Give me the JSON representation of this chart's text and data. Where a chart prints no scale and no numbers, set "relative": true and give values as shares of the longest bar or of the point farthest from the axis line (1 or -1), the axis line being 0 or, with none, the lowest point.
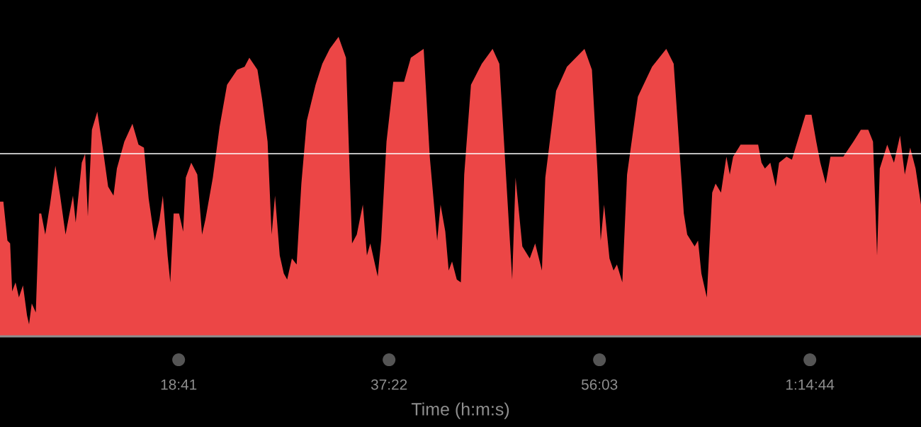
{
  "chart_data": {
    "type": "area",
    "relative": true,
    "xlabel": "Time (h:m:s)",
    "xlim": [
      2.82,
      84.6
    ],
    "xticks": [
      {
        "value": 18.6833,
        "label": "18:41"
      },
      {
        "value": 37.3667,
        "label": "37:22"
      },
      {
        "value": 56.05,
        "label": "56:03"
      },
      {
        "value": 74.7333,
        "label": "1:14:44"
      }
    ],
    "ref_lines": [
      {
        "axis": "y",
        "value": 0.61,
        "color": "#ffffff"
      }
    ],
    "grid": false,
    "legend": false,
    "series": [
      {
        "color": "#ec4646",
        "x": [
          2.82,
          3.12,
          3.48,
          3.72,
          3.9,
          4.2,
          4.5,
          4.86,
          5.22,
          5.4,
          5.64,
          6.0,
          6.3,
          6.48,
          6.84,
          7.26,
          7.74,
          8.16,
          8.64,
          8.94,
          9.3,
          9.54,
          10.08,
          10.38,
          10.62,
          10.98,
          11.46,
          11.94,
          12.42,
          12.9,
          13.2,
          13.86,
          14.58,
          15.12,
          15.6,
          16.02,
          16.56,
          16.98,
          17.28,
          17.7,
          17.94,
          18.24,
          18.72,
          19.08,
          19.32,
          19.8,
          20.34,
          20.76,
          21.06,
          21.72,
          22.32,
          22.98,
          23.88,
          24.54,
          24.96,
          25.68,
          26.1,
          26.58,
          26.94,
          27.24,
          27.66,
          28.02,
          28.32,
          28.74,
          29.16,
          29.58,
          30.06,
          30.84,
          31.44,
          32.1,
          32.88,
          33.54,
          33.78,
          34.08,
          34.5,
          35.04,
          35.4,
          35.7,
          36.36,
          36.66,
          37.14,
          37.74,
          38.7,
          39.3,
          40.44,
          40.98,
          41.64,
          41.94,
          42.36,
          42.66,
          42.96,
          43.38,
          43.74,
          44.04,
          44.64,
          45.6,
          46.56,
          47.16,
          48.3,
          48.6,
          49.2,
          49.86,
          50.34,
          50.94,
          51.24,
          52.2,
          53.16,
          54.72,
          55.38,
          55.86,
          56.16,
          56.46,
          56.94,
          57.3,
          57.6,
          58.08,
          58.5,
          59.46,
          60.72,
          61.98,
          62.64,
          63.54,
          63.84,
          64.5,
          64.8,
          65.1,
          65.58,
          66.06,
          66.36,
          66.84,
          67.32,
          67.62,
          67.92,
          68.58,
          70.14,
          70.44,
          70.74,
          71.22,
          71.7,
          72.0,
          72.66,
          73.14,
          73.62,
          74.34,
          74.88,
          75.3,
          75.66,
          76.14,
          76.56,
          77.7,
          78.6,
          79.26,
          79.92,
          80.34,
          80.7,
          80.94,
          81.6,
          82.2,
          82.74,
          83.16,
          83.64,
          84.12,
          84.6
        ],
        "values": [
          0.45,
          0.45,
          0.32,
          0.31,
          0.15,
          0.18,
          0.13,
          0.17,
          0.07,
          0.04,
          0.11,
          0.08,
          0.41,
          0.41,
          0.34,
          0.44,
          0.57,
          0.47,
          0.34,
          0.4,
          0.47,
          0.38,
          0.58,
          0.61,
          0.4,
          0.69,
          0.75,
          0.63,
          0.5,
          0.47,
          0.56,
          0.65,
          0.71,
          0.64,
          0.63,
          0.46,
          0.32,
          0.39,
          0.47,
          0.27,
          0.18,
          0.41,
          0.41,
          0.35,
          0.53,
          0.58,
          0.54,
          0.34,
          0.39,
          0.53,
          0.7,
          0.84,
          0.89,
          0.9,
          0.93,
          0.89,
          0.79,
          0.65,
          0.34,
          0.47,
          0.27,
          0.21,
          0.19,
          0.26,
          0.24,
          0.51,
          0.72,
          0.84,
          0.91,
          0.96,
          1,
          0.93,
          0.65,
          0.31,
          0.34,
          0.44,
          0.27,
          0.31,
          0.2,
          0.32,
          0.65,
          0.85,
          0.85,
          0.93,
          0.96,
          0.6,
          0.32,
          0.44,
          0.35,
          0.22,
          0.25,
          0.19,
          0.18,
          0.54,
          0.84,
          0.91,
          0.96,
          0.91,
          0.19,
          0.53,
          0.3,
          0.26,
          0.31,
          0.22,
          0.53,
          0.82,
          0.9,
          0.96,
          0.89,
          0.56,
          0.32,
          0.44,
          0.26,
          0.22,
          0.24,
          0.18,
          0.54,
          0.8,
          0.9,
          0.96,
          0.91,
          0.41,
          0.34,
          0.3,
          0.32,
          0.21,
          0.13,
          0.48,
          0.51,
          0.48,
          0.6,
          0.54,
          0.6,
          0.64,
          0.64,
          0.58,
          0.56,
          0.58,
          0.5,
          0.58,
          0.6,
          0.59,
          0.65,
          0.74,
          0.74,
          0.65,
          0.58,
          0.51,
          0.6,
          0.6,
          0.65,
          0.69,
          0.69,
          0.65,
          0.27,
          0.56,
          0.64,
          0.58,
          0.67,
          0.54,
          0.63,
          0.56,
          0.44
        ]
      }
    ]
  }
}
